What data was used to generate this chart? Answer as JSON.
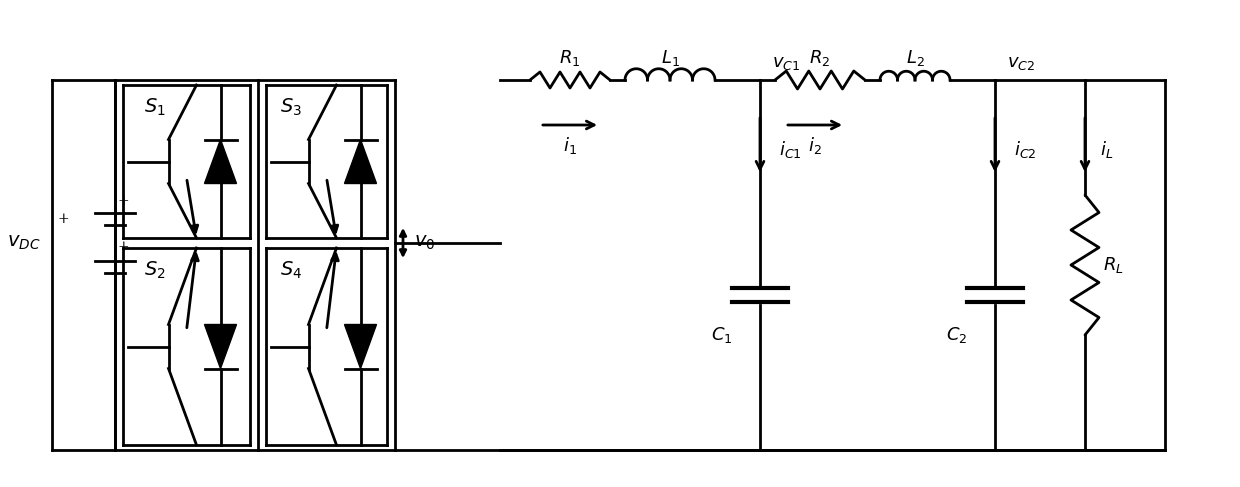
{
  "bg_color": "#ffffff",
  "line_color": "#000000",
  "lw": 2.0,
  "fig_width": 12.4,
  "fig_height": 4.87,
  "dpi": 100
}
